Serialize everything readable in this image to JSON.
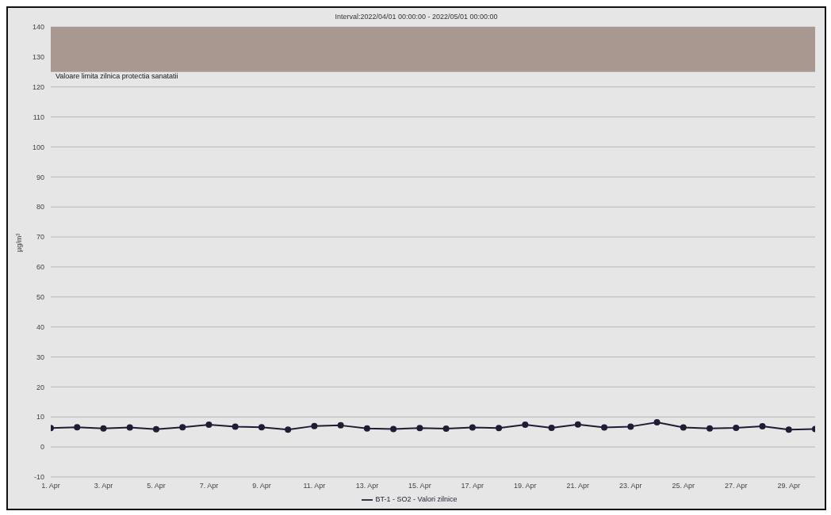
{
  "chart_data": {
    "type": "line",
    "title": "Interval:2022/04/01 00:00:00 - 2022/05/01 00:00:00",
    "ylabel": "µg/m³",
    "x": [
      "2022-04-01",
      "2022-04-02",
      "2022-04-03",
      "2022-04-04",
      "2022-04-05",
      "2022-04-06",
      "2022-04-07",
      "2022-04-08",
      "2022-04-09",
      "2022-04-10",
      "2022-04-11",
      "2022-04-12",
      "2022-04-13",
      "2022-04-14",
      "2022-04-15",
      "2022-04-16",
      "2022-04-17",
      "2022-04-18",
      "2022-04-19",
      "2022-04-20",
      "2022-04-21",
      "2022-04-22",
      "2022-04-23",
      "2022-04-24",
      "2022-04-25",
      "2022-04-26",
      "2022-04-27",
      "2022-04-28",
      "2022-04-29",
      "2022-04-30"
    ],
    "series": [
      {
        "name": "BT-1 - SO2 - Valori zilnice",
        "color": "#1f1d33",
        "values": [
          6.3,
          6.6,
          6.2,
          6.5,
          5.9,
          6.6,
          7.4,
          6.8,
          6.6,
          5.8,
          7.0,
          7.2,
          6.2,
          6.0,
          6.3,
          6.1,
          6.5,
          6.3,
          7.4,
          6.4,
          7.5,
          6.5,
          6.8,
          8.2,
          6.5,
          6.2,
          6.4,
          6.9,
          5.8,
          6.0
        ]
      }
    ],
    "xlim": [
      "2022-04-01",
      "2022-04-30"
    ],
    "xticks": [
      {
        "value": "2022-04-01",
        "label": "1. Apr"
      },
      {
        "value": "2022-04-03",
        "label": "3. Apr"
      },
      {
        "value": "2022-04-05",
        "label": "5. Apr"
      },
      {
        "value": "2022-04-07",
        "label": "7. Apr"
      },
      {
        "value": "2022-04-09",
        "label": "9. Apr"
      },
      {
        "value": "2022-04-11",
        "label": "11. Apr"
      },
      {
        "value": "2022-04-13",
        "label": "13. Apr"
      },
      {
        "value": "2022-04-15",
        "label": "15. Apr"
      },
      {
        "value": "2022-04-17",
        "label": "17. Apr"
      },
      {
        "value": "2022-04-19",
        "label": "19. Apr"
      },
      {
        "value": "2022-04-21",
        "label": "21. Apr"
      },
      {
        "value": "2022-04-23",
        "label": "23. Apr"
      },
      {
        "value": "2022-04-25",
        "label": "25. Apr"
      },
      {
        "value": "2022-04-27",
        "label": "27. Apr"
      },
      {
        "value": "2022-04-29",
        "label": "29. Apr"
      }
    ],
    "ylim": [
      -10,
      140
    ],
    "yticks": [
      -10,
      0,
      10,
      20,
      30,
      40,
      50,
      60,
      70,
      80,
      90,
      100,
      110,
      120,
      130,
      140
    ],
    "bands": [
      {
        "axis": "y",
        "from": 125,
        "to": 140,
        "label": "Valoare limita zilnica protectia sanatatii",
        "color": "#a89890"
      }
    ],
    "grid": "y",
    "legend": "bottom",
    "marker": "circle",
    "line_style": "solid"
  }
}
